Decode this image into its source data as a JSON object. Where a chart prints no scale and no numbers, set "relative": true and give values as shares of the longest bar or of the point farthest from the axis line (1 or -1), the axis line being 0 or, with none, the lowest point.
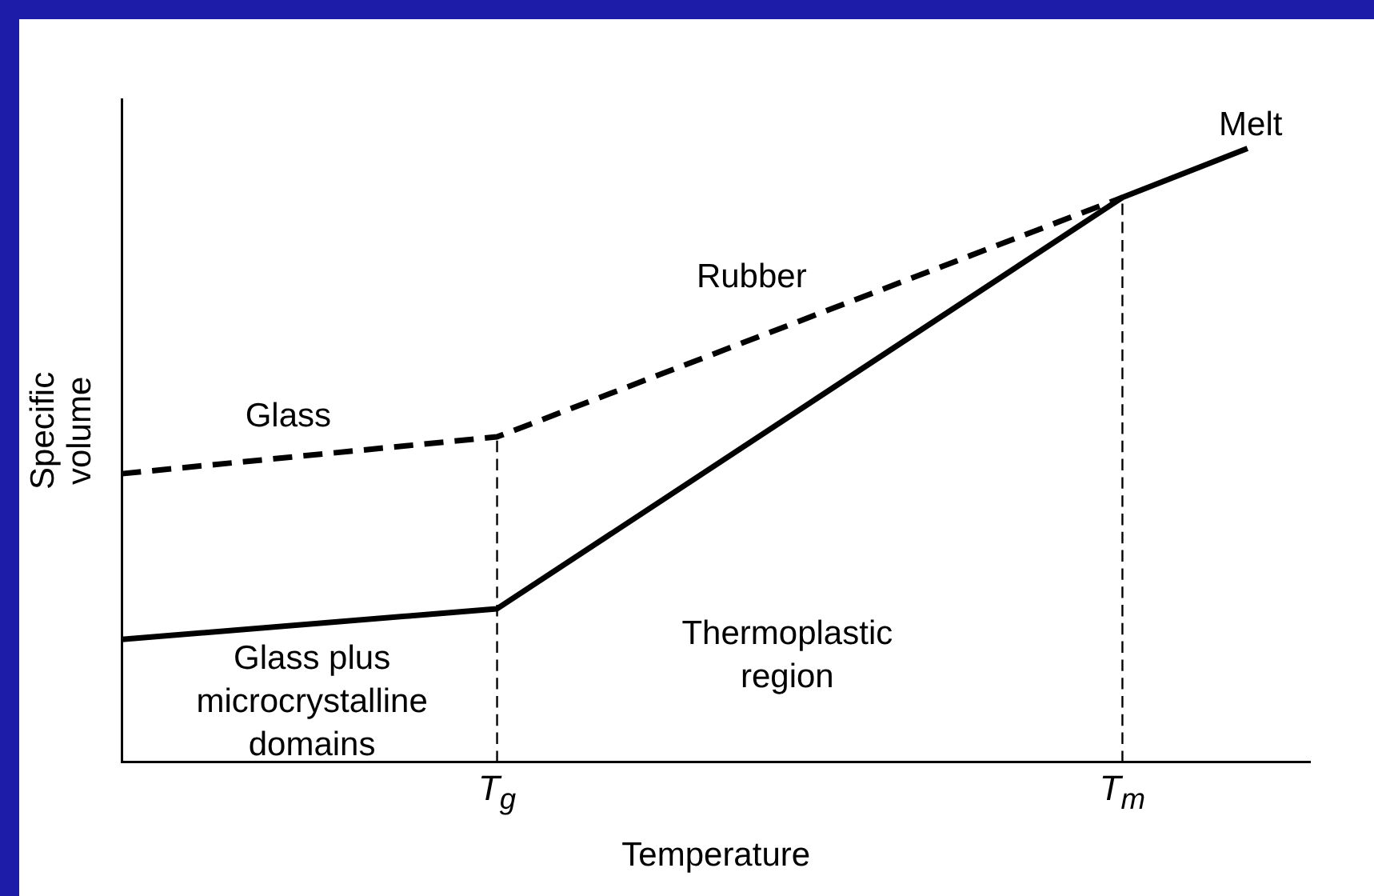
{
  "chart_data": {
    "type": "line",
    "relative": true,
    "xlabel": "Temperature",
    "ylabel": "Specific\nvolume",
    "categories": [
      null,
      null,
      null,
      null,
      null,
      null,
      "T$_{g}$",
      null,
      null,
      null,
      null,
      null,
      null,
      null,
      null,
      null,
      "T$_{m}$",
      null,
      null,
      null
    ],
    "series": [
      {
        "color": "#000000",
        "values": [
          0.2,
          null,
          null,
          null,
          null,
          null,
          0.25,
          null,
          null,
          null,
          null,
          null,
          null,
          null,
          null,
          null,
          0.92,
          null,
          1,
          null
        ]
      },
      {
        "color": "#000000",
        "line_style": "dashed",
        "values": [
          0.47,
          null,
          null,
          null,
          null,
          null,
          0.53,
          null,
          null,
          null,
          null,
          null,
          null,
          null,
          null,
          null,
          0.92,
          null,
          null,
          null
        ]
      }
    ],
    "ref_lines": [
      {
        "axis": "x",
        "value": "T$_{g}$",
        "line_style": "dashed",
        "color": "#000000"
      },
      {
        "axis": "x",
        "value": "T$_{m}$",
        "line_style": "dashed",
        "color": "#000000"
      }
    ],
    "annotations": [
      "Melt",
      "Rubber",
      "Glass",
      "Glass plus\nmicrocrystalline\ndomains",
      "Thermoplastic\nregion"
    ],
    "grid": false,
    "legend": false,
    "marker": "none",
    "line_style": "solid"
  }
}
